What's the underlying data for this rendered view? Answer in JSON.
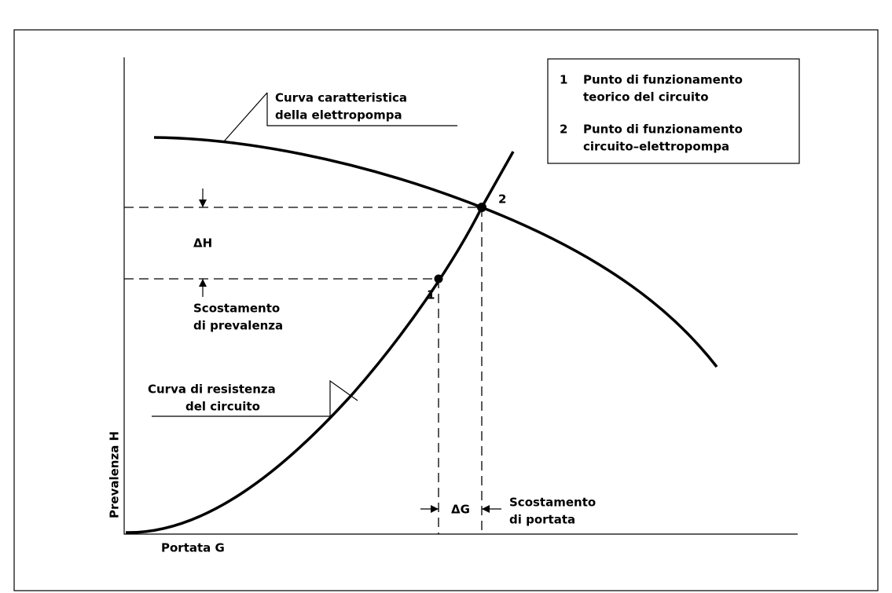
{
  "legend": {
    "items": [
      {
        "number": "1",
        "lines": [
          "Punto di funzionamento",
          "teorico del circuito"
        ]
      },
      {
        "number": "2",
        "lines": [
          "Punto di funzionamento",
          "circuito–elettropompa"
        ]
      }
    ]
  },
  "pump_curve_label": [
    "Curva caratteristica",
    "della elettropompa"
  ],
  "resistance_curve_label": [
    "Curva di resistenza",
    "del circuito"
  ],
  "points": [
    "1",
    "2"
  ],
  "delta_h": {
    "symbol": "ΔH",
    "lines": [
      "Scostamento",
      "di prevalenza"
    ]
  },
  "delta_g": {
    "symbol": "ΔG",
    "lines": [
      "Scostamento",
      "di portata"
    ]
  },
  "y_axis_label": "Prevalenza  H",
  "x_axis_label": "Portata  G"
}
